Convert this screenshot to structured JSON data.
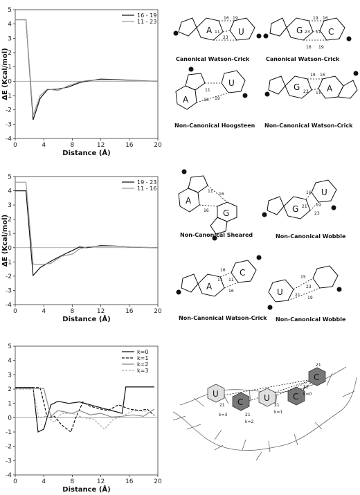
{
  "charts": [
    {
      "chart_data": {
        "type": "line",
        "xlabel": "Distance (Å)",
        "ylabel": "ΔE (Kcal/mol)",
        "xlim": [
          0,
          20
        ],
        "ylim": [
          -4,
          5
        ],
        "xticks": [
          "0",
          "4",
          "8",
          "12",
          "16",
          "20"
        ],
        "yticks": [
          "5",
          "4",
          "3",
          "2",
          "1",
          "0",
          "-1",
          "-2",
          "-3",
          "-4"
        ],
        "legend_position": "top-right",
        "series": [
          {
            "name": "16 - 19",
            "color": "#111111",
            "dash": "none",
            "x": [
              0,
              1.5,
              2.5,
              3.5,
              4.5,
              6,
              7.5,
              9,
              10,
              12,
              14,
              16,
              18,
              20
            ],
            "y": [
              4.3,
              4.3,
              -2.7,
              -1.2,
              -0.6,
              -0.55,
              -0.4,
              -0.1,
              0.0,
              0.15,
              0.12,
              0.08,
              0.03,
              0.0
            ]
          },
          {
            "name": "11 - 23",
            "color": "#999999",
            "dash": "none",
            "x": [
              0,
              1.5,
              2.5,
              3.5,
              4.5,
              6,
              7.5,
              9,
              10,
              12,
              14,
              16,
              18,
              20
            ],
            "y": [
              4.3,
              4.3,
              -2.4,
              -1.0,
              -0.55,
              -0.65,
              -0.3,
              -0.05,
              0.05,
              0.1,
              0.1,
              0.06,
              0.02,
              0.0
            ]
          }
        ]
      }
    },
    {
      "chart_data": {
        "type": "line",
        "xlabel": "Distance (Å)",
        "ylabel": "ΔE (Kcal/mol)",
        "xlim": [
          0,
          20
        ],
        "ylim": [
          -4,
          5
        ],
        "xticks": [
          "0",
          "4",
          "8",
          "12",
          "16",
          "20"
        ],
        "yticks": [
          "5",
          "4",
          "3",
          "2",
          "1",
          "0",
          "-1",
          "-2",
          "-3",
          "-4"
        ],
        "legend_position": "top-right",
        "series": [
          {
            "name": "19 - 23",
            "color": "#111111",
            "dash": "none",
            "x": [
              0,
              1.5,
              2.5,
              3.5,
              5,
              6.5,
              8,
              9,
              10,
              12,
              14,
              16,
              18,
              20
            ],
            "y": [
              4.0,
              4.0,
              -1.95,
              -1.4,
              -0.95,
              -0.55,
              -0.2,
              0.05,
              0.0,
              0.15,
              0.12,
              0.05,
              0.02,
              0.0
            ]
          },
          {
            "name": "11 - 16",
            "color": "#999999",
            "dash": "none",
            "x": [
              0,
              1.5,
              2.5,
              3.5,
              5,
              6.5,
              8,
              9,
              10,
              12,
              14,
              16,
              18,
              20
            ],
            "y": [
              4.6,
              4.6,
              -1.15,
              -1.2,
              -1.1,
              -0.6,
              -0.45,
              -0.1,
              0.05,
              0.1,
              0.1,
              0.05,
              0.02,
              0.0
            ]
          }
        ]
      }
    },
    {
      "chart_data": {
        "type": "line",
        "xlabel": "Distance (Å)",
        "ylabel": "",
        "xlim": [
          0,
          20
        ],
        "ylim": [
          -4,
          5
        ],
        "xticks": [
          "0",
          "4",
          "8",
          "12",
          "16",
          "20"
        ],
        "yticks": [
          "5",
          "4",
          "3",
          "2",
          "1",
          "0",
          "-1",
          "-2",
          "-3",
          "-4"
        ],
        "legend_position": "top-right",
        "series": [
          {
            "name": "k=0",
            "color": "#111111",
            "dash": "none",
            "x": [
              0,
              2.5,
              3.2,
              4,
              5,
              6,
              7.5,
              9,
              10.5,
              12,
              13.5,
              15,
              15.5,
              16,
              18,
              19.5
            ],
            "y": [
              2.1,
              2.1,
              -1.0,
              -0.8,
              0.9,
              1.15,
              1.0,
              1.1,
              0.9,
              0.7,
              0.5,
              0.3,
              2.15,
              2.15,
              2.15,
              2.15
            ]
          },
          {
            "name": "k=1",
            "color": "#111111",
            "dash": "4,2",
            "x": [
              0,
              2.5,
              3.5,
              4.5,
              5.5,
              6.5,
              7.8,
              8.5,
              9.5,
              10.5,
              12,
              13,
              14.5,
              16,
              17.5,
              18.5,
              19.5
            ],
            "y": [
              2.1,
              2.1,
              2.1,
              0.0,
              0.1,
              -0.5,
              -1.0,
              0.0,
              1.1,
              0.8,
              0.6,
              0.5,
              0.9,
              0.6,
              0.5,
              0.6,
              0.15
            ]
          },
          {
            "name": "k=2",
            "color": "#888888",
            "dash": "none",
            "x": [
              0,
              3,
              4,
              5,
              6,
              7,
              8,
              9,
              10.5,
              12,
              13.5,
              15,
              16.5,
              18,
              19.5
            ],
            "y": [
              2.05,
              2.05,
              2.05,
              0.1,
              0.5,
              0.4,
              0.3,
              0.5,
              0.2,
              0.3,
              0.05,
              0.1,
              0.2,
              0.1,
              0.6
            ]
          },
          {
            "name": "k=3",
            "color": "#aaaaaa",
            "dash": "3,2",
            "x": [
              0,
              2.5,
              3.3,
              4.2,
              5.5,
              6.5,
              8,
              9.5,
              11,
              12.5,
              13.8,
              15,
              16.5,
              18,
              19.5
            ],
            "y": [
              2.0,
              2.0,
              0.0,
              0.1,
              -0.3,
              0.3,
              0.3,
              0.0,
              -0.1,
              -0.8,
              -0.1,
              0.1,
              0.5,
              0.45,
              0.5
            ]
          }
        ]
      }
    }
  ],
  "structures": {
    "captions": [
      "Canonical Watson-Crick",
      "Canonical Watson-Crick",
      "Non-Canonical Hoogsteen",
      "Non-Canonical Watson-Crick",
      "Non-Canonical Sheared",
      "Non-Canonical Wobble",
      "Non-Canonical Watson-Crick",
      "Non-Canonical Wobble"
    ],
    "pairs": [
      {
        "left": "A",
        "right": "U",
        "nums": [
          "16",
          "19",
          "11",
          "23"
        ]
      },
      {
        "left": "G",
        "right": "C",
        "nums": [
          "19",
          "16",
          "23",
          "11",
          "16",
          "19"
        ]
      },
      {
        "left": "A",
        "right": "U",
        "nums": [
          "11",
          "16",
          "19"
        ]
      },
      {
        "left": "G",
        "right": "A",
        "nums": [
          "19",
          "16",
          "23",
          "11"
        ]
      },
      {
        "left": "A",
        "right": "G",
        "nums": [
          "11",
          "16",
          "16"
        ]
      },
      {
        "left": "G",
        "right": "U",
        "nums": [
          "16",
          "19",
          "21",
          "23"
        ]
      },
      {
        "left": "A",
        "right": "C",
        "nums": [
          "16",
          "11",
          "11",
          "16"
        ]
      },
      {
        "left": "U",
        "right": "",
        "nums": [
          "15",
          "23",
          "21",
          "19"
        ]
      }
    ],
    "helix": {
      "bases": [
        "U",
        "C",
        "U",
        "C",
        "C"
      ],
      "labels": [
        "21",
        "21",
        "21",
        "21",
        "21"
      ],
      "k_labels": [
        "k=3",
        "k=2",
        "k=1",
        "k=0"
      ]
    }
  }
}
